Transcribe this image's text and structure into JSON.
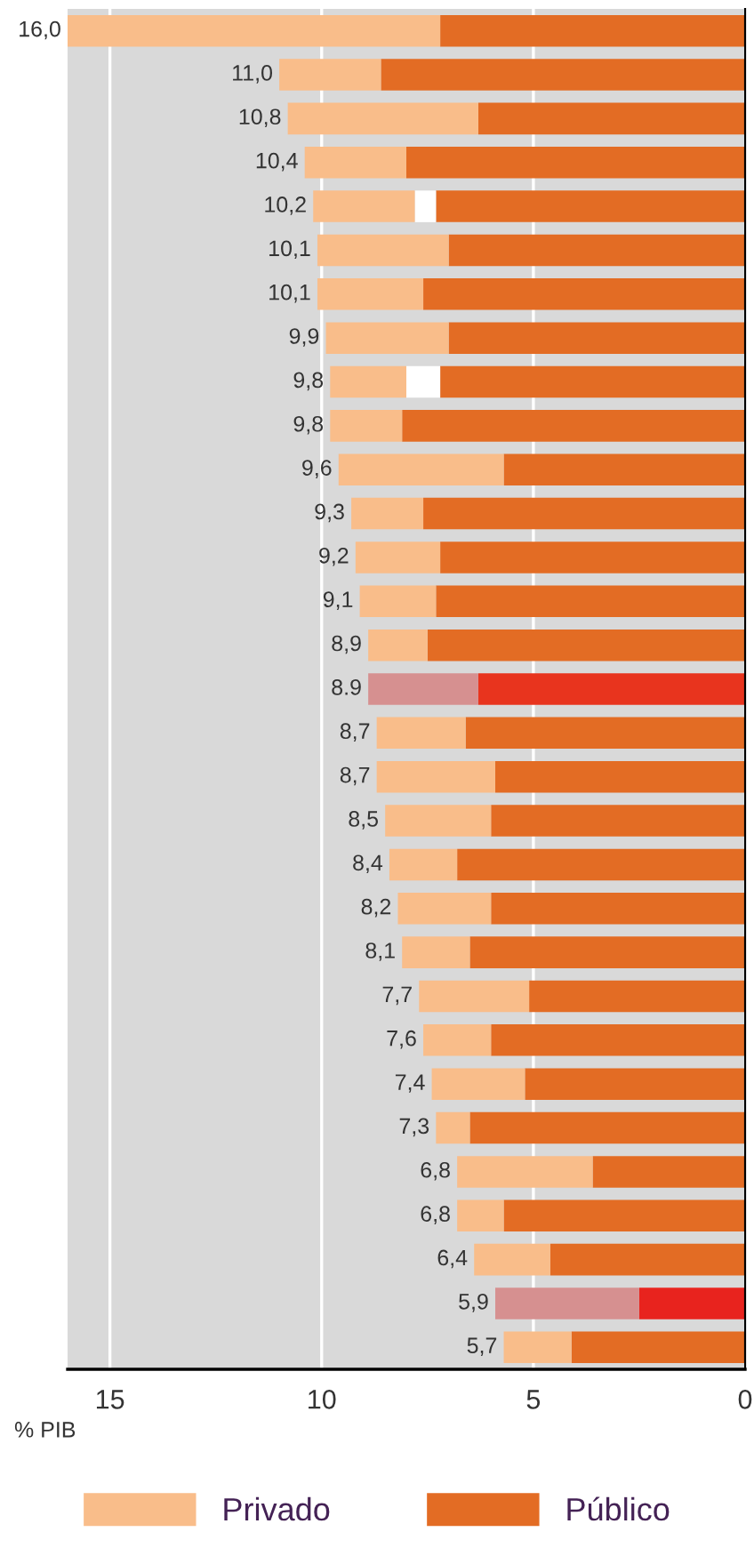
{
  "chart_data": {
    "type": "bar",
    "orientation": "horizontal",
    "stacked": true,
    "xlabel": "% PIB",
    "categories": [
      null,
      null,
      null,
      null,
      null,
      null,
      null,
      null,
      null,
      null,
      null,
      null,
      null,
      null,
      null,
      null,
      null,
      null,
      null,
      null,
      null,
      null,
      null,
      null,
      null,
      null,
      null,
      null,
      null,
      null,
      null
    ],
    "series": [
      {
        "name": "Público",
        "color": "#e36c24",
        "colors": [
          "#e36c24",
          "#e36c24",
          "#e36c24",
          "#e36c24",
          "#e36c24",
          "#e36c24",
          "#e36c24",
          "#e36c24",
          "#e36c24",
          "#e36c24",
          "#e36c24",
          "#e36c24",
          "#e36c24",
          "#e36c24",
          "#e36c24",
          "#e8341e",
          "#e36c24",
          "#e36c24",
          "#e36c24",
          "#e36c24",
          "#e36c24",
          "#e36c24",
          "#e36c24",
          "#e36c24",
          "#e36c24",
          "#e36c24",
          "#e36c24",
          "#e36c24",
          "#e36c24",
          "#e8231e",
          "#e36c24"
        ],
        "values": [
          7.2,
          8.6,
          6.3,
          8.0,
          7.3,
          7.0,
          7.6,
          7.0,
          7.2,
          8.1,
          5.7,
          7.6,
          7.2,
          7.3,
          7.5,
          6.3,
          6.6,
          5.9,
          6.0,
          6.8,
          6.0,
          6.5,
          5.1,
          6.0,
          5.2,
          6.5,
          3.6,
          5.7,
          4.6,
          2.5,
          4.1
        ]
      },
      {
        "color": "#ffffff",
        "values": [
          null,
          null,
          null,
          null,
          0.5,
          null,
          null,
          null,
          0.8,
          null,
          null,
          null,
          null,
          null,
          null,
          null,
          null,
          null,
          null,
          null,
          null,
          null,
          null,
          null,
          null,
          null,
          null,
          null,
          null,
          null,
          null
        ]
      },
      {
        "name": "Privado",
        "color": "#f9bd8a",
        "colors": [
          "#f9bd8a",
          "#f9bd8a",
          "#f9bd8a",
          "#f9bd8a",
          "#f9bd8a",
          "#f9bd8a",
          "#f9bd8a",
          "#f9bd8a",
          "#f9bd8a",
          "#f9bd8a",
          "#f9bd8a",
          "#f9bd8a",
          "#f9bd8a",
          "#f9bd8a",
          "#f9bd8a",
          "#d69090",
          "#f9bd8a",
          "#f9bd8a",
          "#f9bd8a",
          "#f9bd8a",
          "#f9bd8a",
          "#f9bd8a",
          "#f9bd8a",
          "#f9bd8a",
          "#f9bd8a",
          "#f9bd8a",
          "#f9bd8a",
          "#f9bd8a",
          "#f9bd8a",
          "#d69090",
          "#f9bd8a"
        ],
        "values": [
          8.8,
          2.4,
          4.5,
          2.4,
          2.4,
          3.1,
          2.5,
          2.9,
          1.8,
          1.7,
          3.9,
          1.7,
          2.0,
          1.8,
          1.4,
          2.6,
          2.1,
          2.8,
          2.5,
          1.6,
          2.2,
          1.6,
          2.6,
          1.6,
          2.2,
          0.8,
          3.2,
          1.1,
          1.8,
          3.4,
          1.6
        ]
      }
    ],
    "totals": [
      "16,0",
      "11,0",
      "10,8",
      "10,4",
      "10,2",
      "10,1",
      "10,1",
      "9,9",
      "9,8",
      "9,8",
      "9,6",
      "9,3",
      "9,2",
      "9,1",
      "8,9",
      "8.9",
      "8,7",
      "8,7",
      "8,5",
      "8,4",
      "8,2",
      "8,1",
      "7,7",
      "7,6",
      "7,4",
      "7,3",
      "6,8",
      "6,8",
      "6,4",
      "5,9",
      "5,7"
    ],
    "xlim": [
      16,
      0
    ],
    "xticks": [
      15,
      10,
      5,
      0
    ],
    "tick_labels": "x",
    "grid": "x",
    "legend": "bottom"
  }
}
